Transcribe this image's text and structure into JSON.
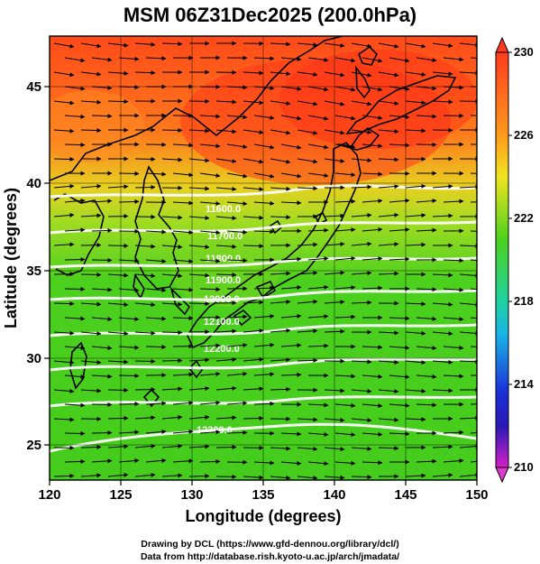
{
  "title": "MSM 06Z31Dec2025 (200.0hPa)",
  "xaxis": {
    "label": "Longitude (degrees)",
    "range": [
      120,
      150
    ],
    "ticks": [
      "120",
      "125",
      "130",
      "135",
      "140",
      "145",
      "150"
    ]
  },
  "yaxis": {
    "label": "Latitude  (degrees)",
    "range": [
      22.5,
      48
    ],
    "ticks": [
      "25",
      "30",
      "35",
      "40",
      "45"
    ]
  },
  "colorbar": {
    "range": [
      210,
      230
    ],
    "ticks": [
      "230",
      "226",
      "222",
      "218",
      "214",
      "210"
    ]
  },
  "contours": {
    "color": "#ffffff",
    "labels": [
      "11600.0",
      "11700.0",
      "11800.0",
      "11900.0",
      "12000.0",
      "12100.0",
      "12200.0",
      "12300.0"
    ]
  },
  "credits": {
    "line1": "Drawing by DCL (https://www.gfd-dennou.org/library/dcl/)",
    "line2": "Data from http://database.rish.kyoto-u.ac.jp/arch/jmadata/"
  }
}
